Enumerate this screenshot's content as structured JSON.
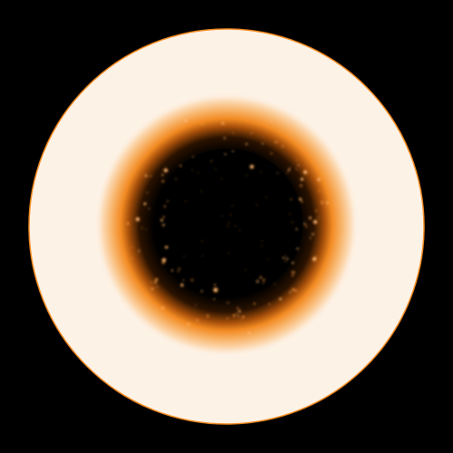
{
  "image": {
    "subject": "glowing-ring",
    "background_color": "#000000",
    "disc_color": "#fdf2e6",
    "rim_color": "#f58a1f",
    "glow_color": "#ff8a1a",
    "core_color": "#000000",
    "spark_color": "#ffb060"
  }
}
